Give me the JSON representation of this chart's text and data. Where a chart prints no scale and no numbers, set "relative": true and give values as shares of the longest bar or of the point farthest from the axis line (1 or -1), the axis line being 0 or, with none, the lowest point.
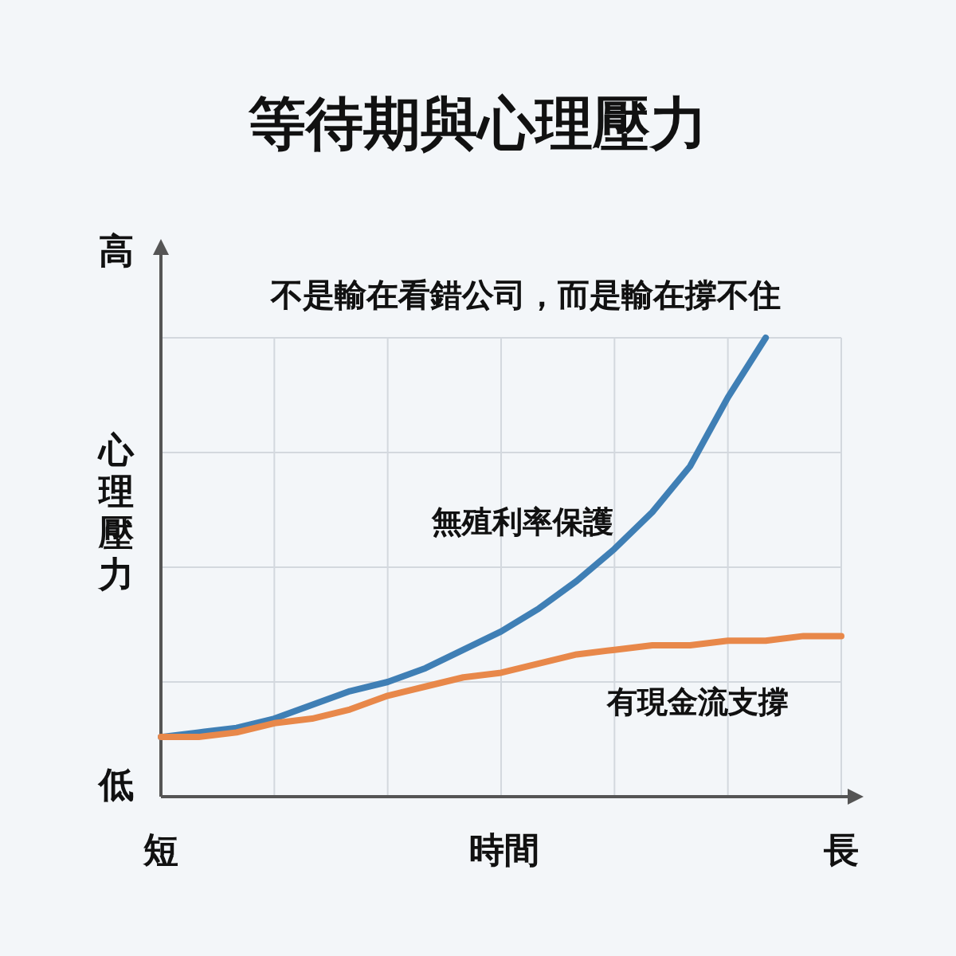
{
  "chart_data": {
    "type": "line",
    "title": "等待期與心理壓力",
    "subtitle": "不是輸在看錯公司，而是輸在撐不住",
    "xlabel": "時間",
    "ylabel": "心理壓力",
    "relative": true,
    "grid": true,
    "legend": false,
    "marker": "none",
    "line_style": "solid",
    "categories": [
      "短",
      null,
      null,
      null,
      null,
      null,
      null,
      null,
      null,
      null,
      null,
      null,
      null,
      null,
      null,
      null,
      null,
      null,
      "長"
    ],
    "annotations": [
      "高",
      "低"
    ],
    "series": [
      {
        "name": "無殖利率保護",
        "color": "#3f7fb5",
        "values": [
          0.13,
          0.14,
          0.15,
          0.17,
          0.2,
          0.23,
          0.25,
          0.28,
          0.32,
          0.36,
          0.41,
          0.47,
          0.54,
          0.62,
          0.72,
          0.87,
          1,
          null,
          null
        ]
      },
      {
        "name": "有現金流支撐",
        "color": "#e8884a",
        "values": [
          0.13,
          0.13,
          0.14,
          0.16,
          0.17,
          0.19,
          0.22,
          0.24,
          0.26,
          0.27,
          0.29,
          0.31,
          0.32,
          0.33,
          0.33,
          0.34,
          0.34,
          0.35,
          0.35
        ]
      }
    ]
  }
}
